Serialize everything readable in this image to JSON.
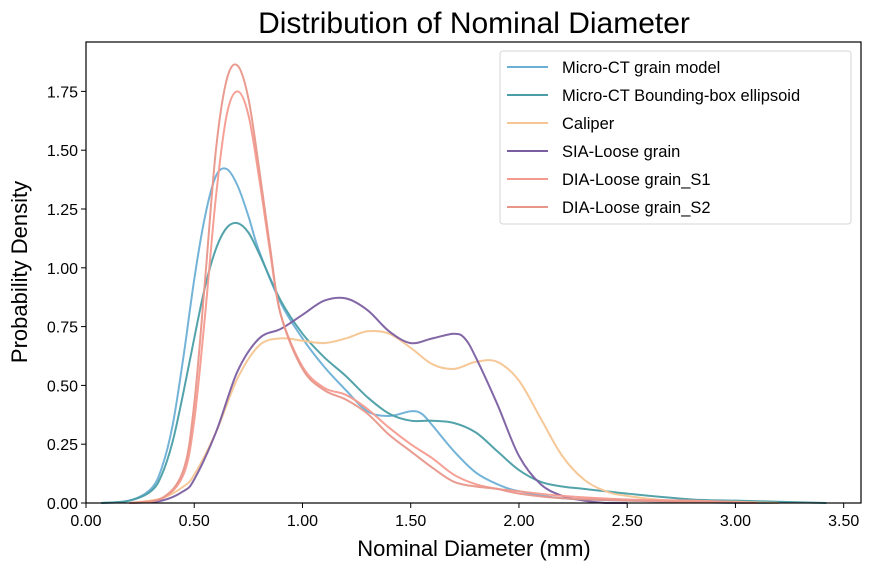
{
  "chart_data": {
    "type": "line",
    "title": "Distribution of Nominal Diameter",
    "xlabel": "Nominal Diameter (mm)",
    "ylabel": "Probability Density",
    "xlim": [
      0.0,
      3.58
    ],
    "ylim": [
      0.0,
      1.96
    ],
    "xticks": [
      0.0,
      0.5,
      1.0,
      1.5,
      2.0,
      2.5,
      3.0,
      3.5
    ],
    "xtick_labels": [
      "0.00",
      "0.50",
      "1.00",
      "1.50",
      "2.00",
      "2.50",
      "3.00",
      "3.50"
    ],
    "yticks": [
      0.0,
      0.25,
      0.5,
      0.75,
      1.0,
      1.25,
      1.5,
      1.75
    ],
    "ytick_labels": [
      "0.00",
      "0.25",
      "0.50",
      "0.75",
      "1.00",
      "1.25",
      "1.50",
      "1.75"
    ],
    "grid": false,
    "legend_position": "top-right",
    "series": [
      {
        "name": "Micro-CT grain model",
        "color": "#6bafd6",
        "x": [
          0.07,
          0.2,
          0.3,
          0.35,
          0.4,
          0.45,
          0.5,
          0.55,
          0.6,
          0.65,
          0.7,
          0.75,
          0.8,
          0.9,
          1.0,
          1.1,
          1.2,
          1.3,
          1.4,
          1.5,
          1.55,
          1.6,
          1.7,
          1.8,
          1.9,
          2.0,
          2.2,
          2.5,
          3.0,
          3.2
        ],
        "y": [
          0.0,
          0.01,
          0.06,
          0.15,
          0.33,
          0.62,
          0.95,
          1.22,
          1.39,
          1.42,
          1.35,
          1.22,
          1.07,
          0.85,
          0.7,
          0.58,
          0.48,
          0.39,
          0.37,
          0.39,
          0.38,
          0.33,
          0.22,
          0.13,
          0.08,
          0.05,
          0.02,
          0.01,
          0.0,
          0.0
        ]
      },
      {
        "name": "Micro-CT Bounding-box ellipsoid",
        "color": "#4a9ea6",
        "x": [
          0.07,
          0.2,
          0.3,
          0.35,
          0.4,
          0.45,
          0.5,
          0.55,
          0.6,
          0.65,
          0.7,
          0.75,
          0.8,
          0.9,
          1.0,
          1.1,
          1.2,
          1.3,
          1.4,
          1.5,
          1.6,
          1.7,
          1.8,
          1.9,
          2.0,
          2.1,
          2.2,
          2.3,
          2.5,
          2.8,
          3.0,
          3.42
        ],
        "y": [
          0.0,
          0.01,
          0.05,
          0.12,
          0.26,
          0.47,
          0.7,
          0.92,
          1.08,
          1.17,
          1.19,
          1.15,
          1.06,
          0.86,
          0.72,
          0.62,
          0.54,
          0.45,
          0.38,
          0.35,
          0.35,
          0.34,
          0.3,
          0.22,
          0.14,
          0.09,
          0.07,
          0.06,
          0.04,
          0.015,
          0.01,
          0.0
        ]
      },
      {
        "name": "Caliper",
        "color": "#f5c592",
        "x": [
          0.2,
          0.35,
          0.45,
          0.5,
          0.6,
          0.7,
          0.8,
          0.9,
          1.0,
          1.1,
          1.2,
          1.3,
          1.4,
          1.5,
          1.6,
          1.7,
          1.8,
          1.9,
          2.0,
          2.1,
          2.2,
          2.3,
          2.4,
          2.5,
          2.7,
          3.0,
          3.2
        ],
        "y": [
          0.0,
          0.02,
          0.07,
          0.12,
          0.3,
          0.53,
          0.67,
          0.7,
          0.69,
          0.68,
          0.7,
          0.73,
          0.72,
          0.66,
          0.59,
          0.57,
          0.6,
          0.6,
          0.52,
          0.36,
          0.2,
          0.1,
          0.05,
          0.03,
          0.01,
          0.005,
          0.0
        ]
      },
      {
        "name": "SIA-Loose grain",
        "color": "#7b5ea1",
        "x": [
          0.2,
          0.35,
          0.45,
          0.5,
          0.6,
          0.7,
          0.8,
          0.9,
          1.0,
          1.1,
          1.2,
          1.3,
          1.4,
          1.5,
          1.6,
          1.7,
          1.75,
          1.8,
          1.9,
          2.0,
          2.1,
          2.2,
          2.3,
          2.4,
          2.5
        ],
        "y": [
          0.0,
          0.01,
          0.05,
          0.1,
          0.3,
          0.56,
          0.7,
          0.74,
          0.8,
          0.86,
          0.87,
          0.82,
          0.73,
          0.68,
          0.7,
          0.72,
          0.7,
          0.62,
          0.42,
          0.2,
          0.08,
          0.03,
          0.01,
          0.0,
          0.0
        ]
      },
      {
        "name": "DIA-Loose grain_S1",
        "color": "#f59a8f",
        "x": [
          0.2,
          0.35,
          0.45,
          0.5,
          0.55,
          0.6,
          0.65,
          0.7,
          0.75,
          0.8,
          0.85,
          0.9,
          1.0,
          1.1,
          1.2,
          1.3,
          1.4,
          1.5,
          1.6,
          1.7,
          1.8,
          1.9,
          2.0,
          2.2,
          2.5,
          2.8,
          3.1
        ],
        "y": [
          0.0,
          0.02,
          0.12,
          0.35,
          0.8,
          1.3,
          1.65,
          1.75,
          1.65,
          1.38,
          1.07,
          0.8,
          0.58,
          0.49,
          0.46,
          0.4,
          0.32,
          0.25,
          0.19,
          0.12,
          0.08,
          0.06,
          0.05,
          0.03,
          0.015,
          0.01,
          0.0
        ]
      },
      {
        "name": "DIA-Loose grain_S2",
        "color": "#e8968a",
        "x": [
          0.2,
          0.35,
          0.45,
          0.5,
          0.55,
          0.6,
          0.65,
          0.7,
          0.75,
          0.8,
          0.85,
          0.9,
          1.0,
          1.1,
          1.2,
          1.3,
          1.4,
          1.5,
          1.6,
          1.7,
          1.8,
          1.9,
          2.0,
          2.2,
          2.5,
          2.8,
          3.1
        ],
        "y": [
          0.0,
          0.02,
          0.14,
          0.42,
          0.95,
          1.5,
          1.8,
          1.86,
          1.72,
          1.42,
          1.09,
          0.8,
          0.57,
          0.48,
          0.44,
          0.38,
          0.29,
          0.22,
          0.15,
          0.09,
          0.07,
          0.06,
          0.04,
          0.02,
          0.01,
          0.005,
          0.0
        ]
      }
    ]
  }
}
